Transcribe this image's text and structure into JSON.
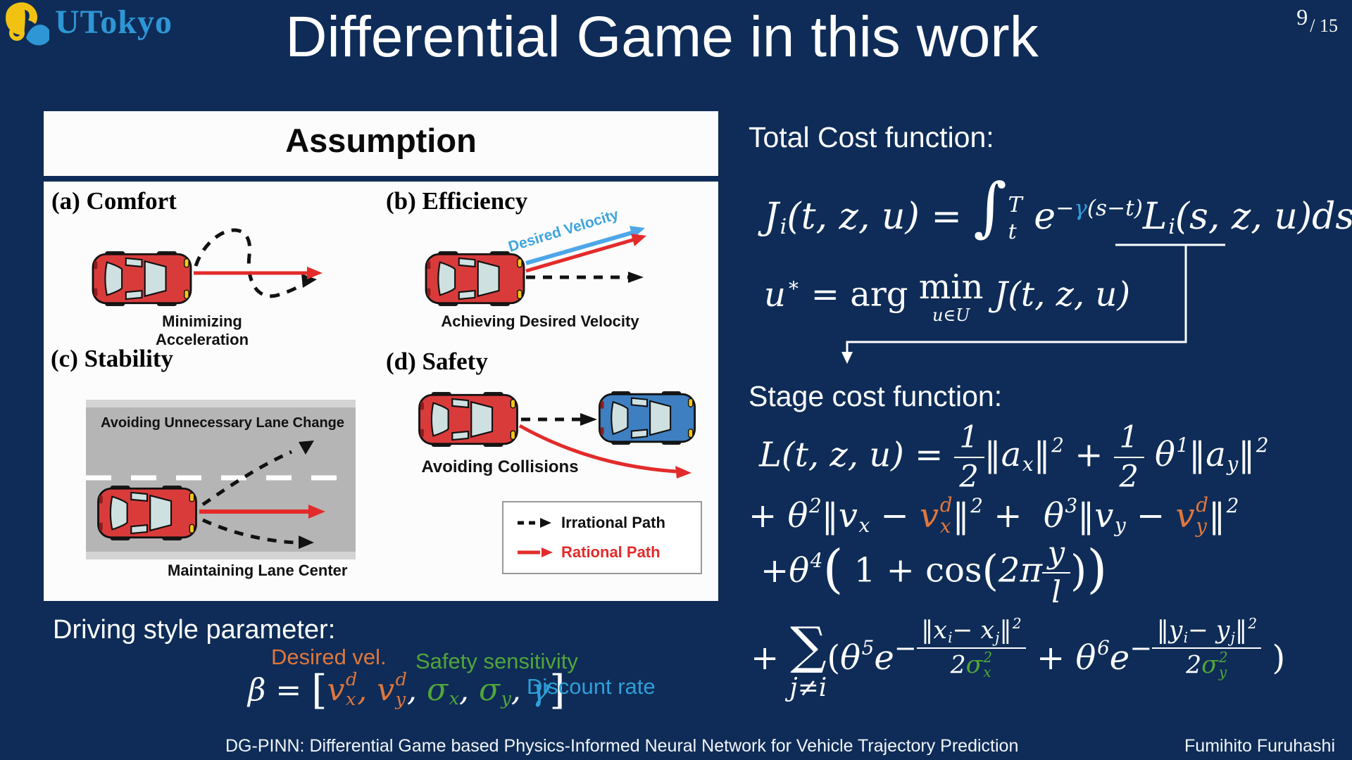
{
  "colors": {
    "background": "#0e2c57",
    "accent_orange": "#e0773c",
    "accent_green": "#52a53a",
    "accent_blue": "#2e9fd9",
    "arrow_red": "#e32b2b",
    "car_red": "#d93b3b",
    "car_blue": "#3e7fc1"
  },
  "header": {
    "logo_text": "UTokyo",
    "title": "Differential Game in this work",
    "page_number": "9",
    "page_total": "/ 15"
  },
  "assumption": {
    "title": "Assumption",
    "quadrants": [
      {
        "label": "(a) Comfort",
        "caption": "Minimizing Acceleration"
      },
      {
        "label": "(b) Efficiency",
        "caption": "Achieving Desired Velocity",
        "arrow_label": "Desired Velocity"
      },
      {
        "label": "(c) Stability",
        "caption_top": "Avoiding Unnecessary Lane Change",
        "caption_bottom": "Maintaining Lane Center"
      },
      {
        "label": "(d) Safety",
        "caption": "Avoiding Collisions"
      }
    ],
    "legend": [
      {
        "label": "Irrational Path",
        "style": "dashed-black"
      },
      {
        "label": "Rational Path",
        "style": "solid-red"
      }
    ]
  },
  "right": {
    "total_cost_heading": "Total Cost function:",
    "stage_cost_heading": "Stage cost function:"
  },
  "driving_style": {
    "heading": "Driving style parameter:",
    "desired_vel_label": "Desired vel.",
    "safety_label": "Safety sensitivity",
    "discount_label": "Discount rate"
  },
  "footer": {
    "title": "DG-PINN: Differential Game based Physics-Informed Neural Network for Vehicle Trajectory Prediction",
    "author": "Fumihito Furuhashi"
  },
  "formulas": {
    "total_cost": [
      {
        "t": "J",
        "sub": "i"
      },
      {
        "t": "(t, z, u) = "
      },
      {
        "t": "∫",
        "sz": 1.75,
        "up": true
      },
      {
        "t": "",
        "sup": "T",
        "sub": "t",
        "tall": true
      },
      {
        "t": " "
      },
      {
        "t": "e"
      },
      {
        "seq": [
          {
            "t": "−"
          },
          {
            "t": "γ",
            "cls": "b"
          },
          {
            "t": "(s−t)"
          }
        ],
        "sz": 0.6,
        "raise": 0.62
      },
      {
        "t": "L",
        "sub": "i"
      },
      {
        "t": "(s, z, u)ds"
      }
    ],
    "argmin": [
      {
        "t": "u",
        "sup": "∗"
      },
      {
        "t": " = "
      },
      {
        "t": "arg ",
        "up": true
      },
      {
        "t": "min",
        "up": true,
        "under": [
          {
            "t": "u∈U"
          }
        ]
      },
      {
        "t": " J(t, z, u)"
      }
    ],
    "stage1": [
      {
        "t": "L"
      },
      {
        "t": "(t, z, u) = "
      },
      {
        "frac": [
          "1",
          "2"
        ]
      },
      {
        "t": "‖a",
        "sub": "x"
      },
      {
        "t": "‖",
        "sup": "2"
      },
      {
        "t": " + "
      },
      {
        "frac": [
          "1",
          "2"
        ]
      },
      {
        "t": " θ",
        "sup": "1"
      },
      {
        "t": "‖a",
        "sub": "y"
      },
      {
        "t": "‖",
        "sup": "2"
      }
    ],
    "stage2": [
      {
        "t": "+ θ",
        "sup": "2"
      },
      {
        "t": "‖v",
        "sub": "x"
      },
      {
        "t": " − "
      },
      {
        "t": "v",
        "sup": "d",
        "sub": "x",
        "cls": "o"
      },
      {
        "t": "‖",
        "sup": "2"
      },
      {
        "t": " +  θ",
        "sup": "3"
      },
      {
        "t": "‖v",
        "sub": "y"
      },
      {
        "t": " − "
      },
      {
        "t": "v",
        "sup": "d",
        "sub": "y",
        "cls": "o"
      },
      {
        "t": "‖",
        "sup": "2"
      }
    ],
    "stage3": [
      {
        "t": "+θ",
        "sup": "4"
      },
      {
        "t": "(",
        "sz": 1.55,
        "up": true,
        "raise": -0.1
      },
      {
        "t": " 1 + cos",
        "up": true
      },
      {
        "t": "(",
        "sz": 1.25,
        "up": true,
        "raise": -0.08
      },
      {
        "t": "2π"
      },
      {
        "frac": [
          [
            {
              "t": "y"
            }
          ],
          [
            {
              "t": "l"
            }
          ]
        ]
      },
      {
        "t": ")",
        "sz": 1.25,
        "up": true,
        "raise": -0.08
      },
      {
        "t": ")",
        "sz": 1.55,
        "up": true,
        "raise": -0.1
      }
    ],
    "stage4": [
      {
        "t": "+ "
      },
      {
        "t": "∑",
        "sz": 1.5,
        "up": true,
        "under": [
          {
            "t": "j≠i"
          }
        ]
      },
      {
        "t": "(",
        "up": true
      },
      {
        "t": "θ",
        "sup": "5"
      },
      {
        "t": "e"
      },
      {
        "seq": [
          {
            "t": "−"
          },
          {
            "frac": [
              [
                {
                  "t": "‖x",
                  "sub": "i"
                },
                {
                  "t": "− x",
                  "sub": "j"
                },
                {
                  "t": "‖",
                  "sup": "2"
                }
              ],
              [
                {
                  "t": "2"
                },
                {
                  "t": "σ",
                  "sup": "2",
                  "sub": "x",
                  "cls": "g"
                }
              ]
            ]
          }
        ],
        "sz": 0.8,
        "raise": 0.45
      },
      {
        "t": " + θ",
        "sup": "6"
      },
      {
        "t": "e"
      },
      {
        "seq": [
          {
            "t": "−"
          },
          {
            "frac": [
              [
                {
                  "t": "‖y",
                  "sub": "i"
                },
                {
                  "t": "− y",
                  "sub": "j"
                },
                {
                  "t": "‖",
                  "sup": "2"
                }
              ],
              [
                {
                  "t": "2"
                },
                {
                  "t": "σ",
                  "sup": "2",
                  "sub": "y",
                  "cls": "g"
                }
              ]
            ]
          }
        ],
        "sz": 0.8,
        "raise": 0.45
      },
      {
        "t": " )",
        "up": true
      }
    ],
    "beta": [
      {
        "t": "β"
      },
      {
        "t": " = "
      },
      {
        "t": "[",
        "sz": 1.3,
        "up": true,
        "raise": -0.08
      },
      {
        "t": "v",
        "sup": "d",
        "sub": "x",
        "cls": "o"
      },
      {
        "t": ", ",
        "cls": "o"
      },
      {
        "t": "v",
        "sup": "d",
        "sub": "y",
        "cls": "o"
      },
      {
        "t": ", "
      },
      {
        "t": "σ",
        "sub": "x",
        "cls": "g"
      },
      {
        "t": ", "
      },
      {
        "t": "σ",
        "sub": "y",
        "cls": "g"
      },
      {
        "t": ", "
      },
      {
        "t": "γ",
        "cls": "b"
      },
      {
        "t": "]",
        "sz": 1.3,
        "up": true,
        "raise": -0.08
      }
    ]
  }
}
